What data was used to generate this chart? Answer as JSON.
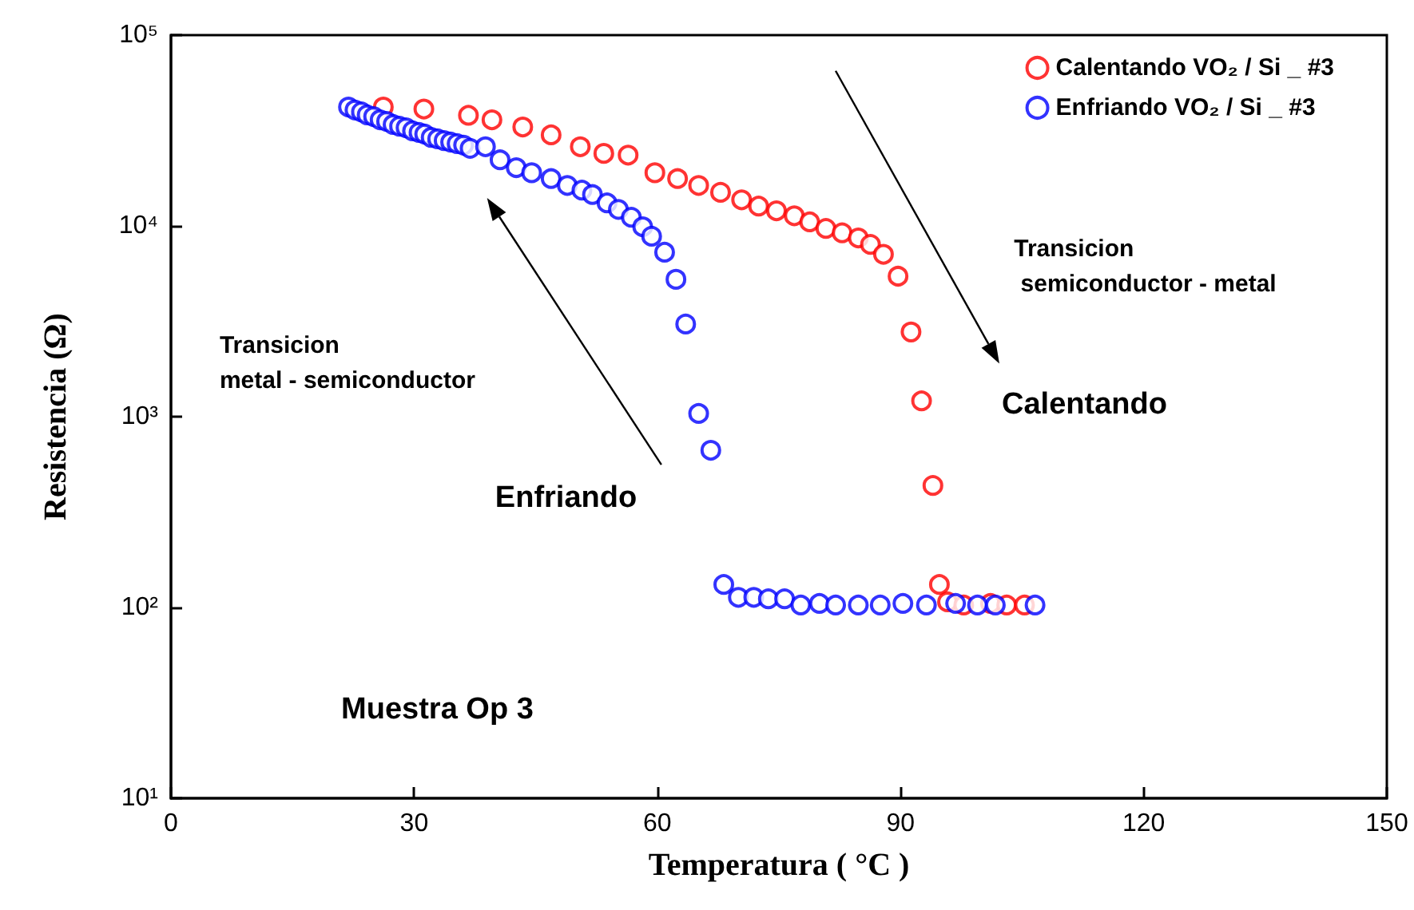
{
  "chart_data": {
    "type": "scatter",
    "xlabel": "Temperatura ( °C )",
    "ylabel": "Resistencia (Ω)",
    "xlim": [
      0,
      150
    ],
    "xticks": [
      0,
      30,
      60,
      90,
      120,
      150
    ],
    "ylim": [
      10,
      100000
    ],
    "yticks": [
      {
        "value": 10,
        "label": "10¹"
      },
      {
        "value": 100,
        "label": "10²"
      },
      {
        "value": 1000,
        "label": "10³"
      },
      {
        "value": 10000,
        "label": "10⁴"
      },
      {
        "value": 100000,
        "label": "10⁵"
      }
    ],
    "log": "y",
    "grid": false,
    "legend": "top right",
    "marker": "circle",
    "annotations": [
      "Transicion\n semiconductor - metal",
      "Calentando",
      "Transicion\nmetal - semiconductor",
      "Enfriando",
      "Muestra Op 3"
    ],
    "series": [
      {
        "name": "Calentando VO₂ / Si _ #3",
        "color": "#ff0000",
        "x": [
          26.2,
          31.2,
          36.7,
          39.6,
          43.4,
          46.9,
          50.5,
          53.4,
          56.4,
          59.7,
          62.5,
          65.1,
          67.8,
          70.4,
          72.5,
          74.7,
          76.9,
          78.8,
          80.8,
          82.8,
          84.8,
          86.3,
          87.9,
          89.7,
          91.3,
          92.6,
          94.0,
          94.8,
          95.8,
          97.8,
          101.1,
          103.1,
          105.3
        ],
        "values": [
          42000,
          41000,
          38000,
          36000,
          33000,
          30000,
          26000,
          24000,
          23500,
          19000,
          17700,
          16300,
          15000,
          13700,
          12700,
          12000,
          11300,
          10500,
          9700,
          9200,
          8650,
          8000,
          7100,
          5450,
          2780,
          1210,
          436,
          132,
          107,
          103,
          105,
          103,
          103
        ]
      },
      {
        "name": "Enfriando VO₂ / Si _ #3",
        "color": "#0000ff",
        "x": [
          21.9,
          22.7,
          23.5,
          24.2,
          25.0,
          25.8,
          26.6,
          27.4,
          28.2,
          29.0,
          29.8,
          30.6,
          31.3,
          32.1,
          32.9,
          33.7,
          34.5,
          35.3,
          36.1,
          36.9,
          38.8,
          40.6,
          42.6,
          44.5,
          46.9,
          48.9,
          50.7,
          52.0,
          53.8,
          55.2,
          56.8,
          58.2,
          59.3,
          60.9,
          62.3,
          63.5,
          65.1,
          66.6,
          68.2,
          70.0,
          71.9,
          73.7,
          75.7,
          77.7,
          80.0,
          82.0,
          84.8,
          87.5,
          90.3,
          93.2,
          96.8,
          99.5,
          101.7,
          106.6
        ],
        "values": [
          42000,
          40500,
          39600,
          38200,
          37400,
          36000,
          35300,
          34000,
          33300,
          32700,
          31500,
          30900,
          30300,
          29100,
          28600,
          28000,
          27500,
          27000,
          26500,
          25500,
          26000,
          22200,
          20200,
          19000,
          17700,
          16300,
          15400,
          14600,
          13200,
          12200,
          11100,
          9900,
          8830,
          7280,
          5250,
          3060,
          1040,
          667,
          132,
          113,
          113,
          111,
          111,
          103,
          105,
          103,
          103,
          103,
          105,
          103,
          105,
          103,
          103,
          103
        ]
      }
    ]
  }
}
